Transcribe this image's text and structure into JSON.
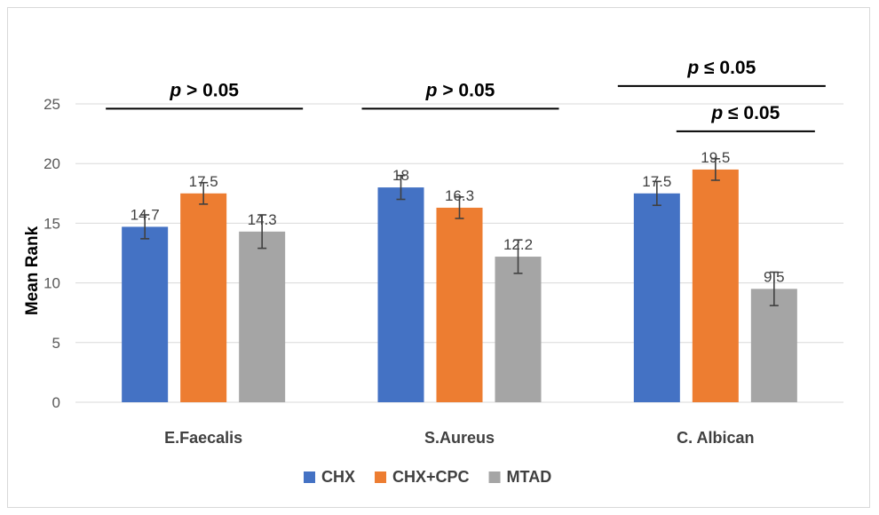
{
  "chart_data": {
    "type": "bar",
    "categories": [
      "E.Faecalis",
      "S.Aureus",
      "C. Albican"
    ],
    "series": [
      {
        "name": "CHX",
        "color": "#4472c4",
        "values": [
          14.7,
          18,
          17.5
        ],
        "error": [
          1.0,
          1.0,
          1.0
        ],
        "labels": [
          "14.7",
          "18",
          "17.5"
        ]
      },
      {
        "name": "CHX+CPC",
        "color": "#ed7d31",
        "values": [
          17.5,
          16.3,
          19.5
        ],
        "error": [
          0.9,
          0.9,
          0.9
        ],
        "labels": [
          "17.5",
          "16.3",
          "19.5"
        ]
      },
      {
        "name": "MTAD",
        "color": "#a5a5a5",
        "values": [
          14.3,
          12.2,
          9.5
        ],
        "error": [
          1.4,
          1.4,
          1.4
        ],
        "labels": [
          "14.3",
          "12.2",
          "9.5"
        ]
      }
    ],
    "ylabel": "Mean Rank",
    "ylim": [
      0,
      25
    ],
    "yticks": [
      0,
      5,
      10,
      15,
      20,
      25
    ],
    "grid": true,
    "legend_position": "bottom",
    "annotations": [
      {
        "text_p": "p",
        "text_rest": " > 0.05",
        "from_series": 0,
        "to_series": 2,
        "category": 0,
        "level": 24.6
      },
      {
        "text_p": "p",
        "text_rest": " > 0.05",
        "from_series": 0,
        "to_series": 2,
        "category": 1,
        "level": 24.6
      },
      {
        "text_p": "p",
        "text_rest": " ≤ 0.05",
        "from_series": 0,
        "to_series": 2,
        "category": 2,
        "level": 26.5
      },
      {
        "text_p": "p",
        "text_rest": " ≤ 0.05",
        "from_series": 1,
        "to_series": 2,
        "category": 2,
        "level": 22.7
      }
    ]
  }
}
